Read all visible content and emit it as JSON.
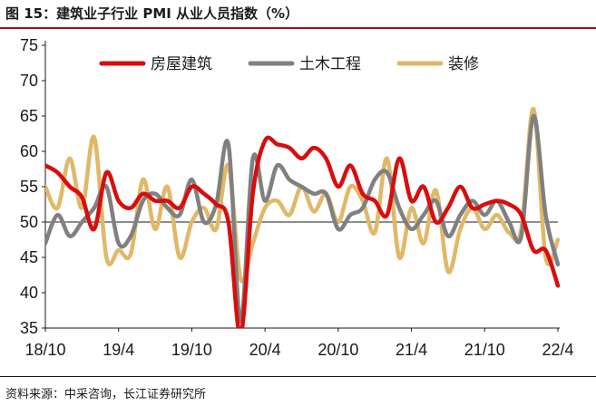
{
  "header": {
    "title": "图 15：建筑业子行业 PMI 从业人员指数（%）"
  },
  "footer": {
    "source": "资料来源：中采咨询，长江证券研究所"
  },
  "chart_data": {
    "type": "line",
    "title": "图 15：建筑业子行业 PMI 从业人员指数（%）",
    "xlabel": "",
    "ylabel": "",
    "ylim": [
      35,
      75
    ],
    "yticks": [
      35,
      40,
      45,
      50,
      55,
      60,
      65,
      70,
      75
    ],
    "reference_line": 50,
    "categories": [
      "18/10",
      "18/11",
      "18/12",
      "19/1",
      "19/2",
      "19/3",
      "19/4",
      "19/5",
      "19/6",
      "19/7",
      "19/8",
      "19/9",
      "19/10",
      "19/11",
      "19/12",
      "20/1",
      "20/2",
      "20/3",
      "20/4",
      "20/5",
      "20/6",
      "20/7",
      "20/8",
      "20/9",
      "20/10",
      "20/11",
      "20/12",
      "21/1",
      "21/2",
      "21/3",
      "21/4",
      "21/5",
      "21/6",
      "21/7",
      "21/8",
      "21/9",
      "21/10",
      "21/11",
      "21/12",
      "22/1",
      "22/2",
      "22/3",
      "22/4"
    ],
    "x_tick_labels": [
      "18/10",
      "19/4",
      "19/10",
      "20/4",
      "20/10",
      "21/4",
      "21/10",
      "22/4"
    ],
    "legend_position": "top",
    "series": [
      {
        "name": "房屋建筑",
        "color": "#d90d0d",
        "values": [
          58.0,
          57.0,
          55.0,
          53.5,
          49.0,
          57.0,
          53.0,
          52.0,
          54.0,
          53.0,
          53.0,
          52.0,
          55.0,
          54.0,
          52.5,
          50.0,
          34.0,
          54.0,
          61.5,
          61.0,
          60.5,
          59.0,
          60.5,
          59.0,
          55.0,
          58.0,
          54.0,
          53.0,
          51.0,
          59.0,
          53.0,
          55.0,
          50.0,
          52.0,
          55.0,
          52.0,
          52.5,
          53.0,
          52.5,
          51.0,
          46.0,
          46.0,
          41.0
        ]
      },
      {
        "name": "土木工程",
        "color": "#808080",
        "values": [
          47.0,
          51.0,
          48.0,
          50.0,
          52.0,
          55.0,
          47.0,
          48.0,
          53.0,
          54.0,
          52.0,
          51.0,
          56.0,
          50.0,
          52.5,
          61.0,
          36.0,
          59.0,
          53.0,
          58.0,
          56.0,
          55.0,
          54.0,
          54.0,
          49.0,
          51.0,
          52.0,
          56.0,
          57.0,
          52.0,
          49.0,
          51.0,
          53.0,
          48.0,
          51.0,
          53.0,
          51.0,
          53.0,
          50.0,
          48.0,
          65.0,
          51.0,
          44.0
        ]
      },
      {
        "name": "装修",
        "color": "#e0b868",
        "values": [
          55.0,
          52.0,
          59.0,
          52.0,
          62.0,
          45.0,
          46.0,
          45.5,
          56.0,
          49.0,
          55.0,
          45.0,
          50.0,
          52.0,
          49.0,
          58.0,
          42.0,
          47.0,
          52.0,
          53.0,
          51.0,
          55.0,
          51.5,
          54.0,
          50.0,
          55.0,
          53.0,
          48.5,
          59.0,
          45.0,
          52.0,
          47.0,
          54.5,
          43.0,
          49.0,
          52.0,
          49.0,
          51.0,
          48.5,
          49.0,
          66.0,
          45.0,
          47.5
        ]
      }
    ]
  }
}
